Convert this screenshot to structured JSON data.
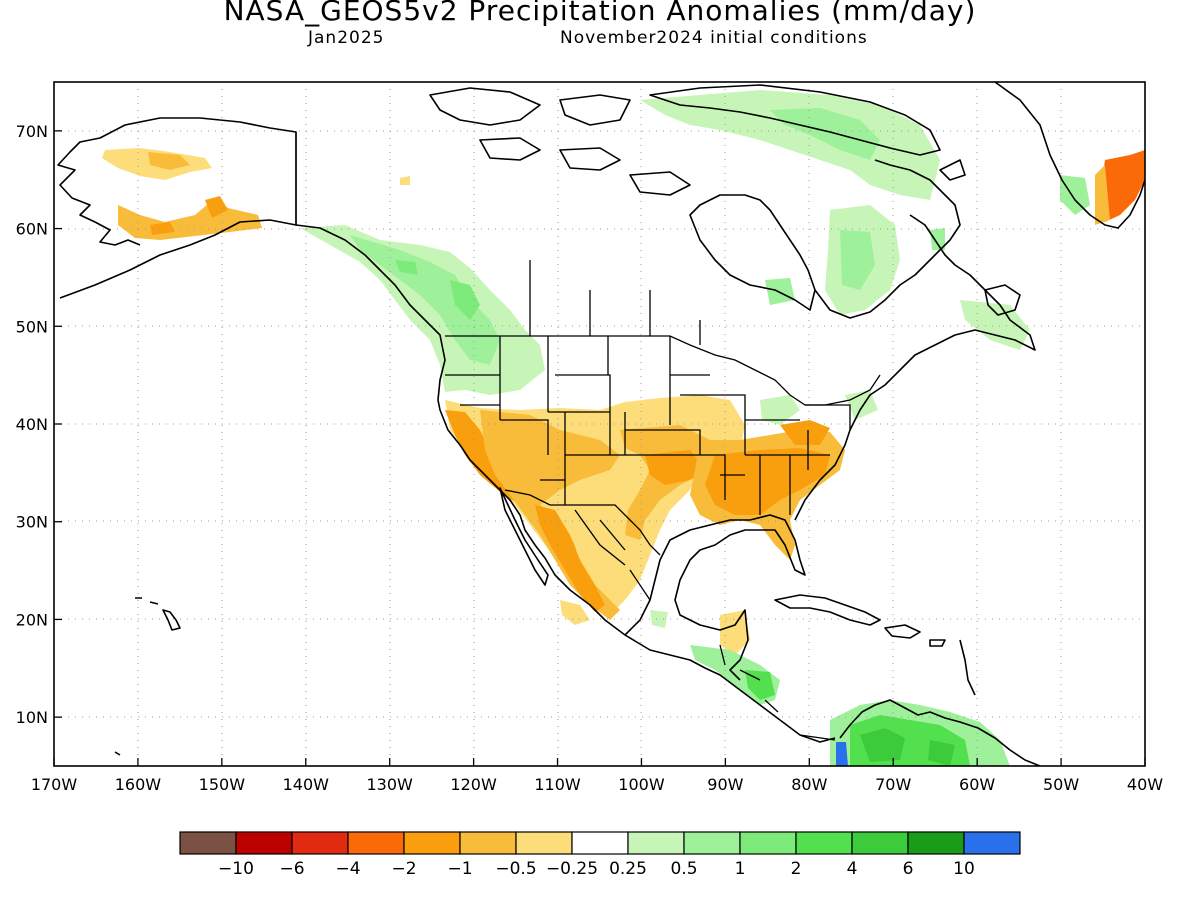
{
  "title": "NASA_GEOS5v2 Precipitation Anomalies (mm/day)",
  "subtitle_left": "Jan2025",
  "subtitle_right": "November2024 initial conditions",
  "lat_labels": [
    "70N",
    "60N",
    "50N",
    "40N",
    "30N",
    "20N",
    "10N"
  ],
  "lat_values": [
    70,
    60,
    50,
    40,
    30,
    20,
    10
  ],
  "lon_labels": [
    "170W",
    "160W",
    "150W",
    "140W",
    "130W",
    "120W",
    "110W",
    "100W",
    "90W",
    "80W",
    "70W",
    "60W",
    "50W",
    "40W"
  ],
  "lon_values": [
    -170,
    -160,
    -150,
    -140,
    -130,
    -120,
    -110,
    -100,
    -90,
    -80,
    -70,
    -60,
    -50,
    -40
  ],
  "map_extent": {
    "lon": [
      -170,
      -40
    ],
    "lat": [
      5,
      75
    ]
  },
  "colorbar": {
    "colors": [
      "#7b5143",
      "#bd0000",
      "#e02b10",
      "#fb6a09",
      "#f99e0c",
      "#f9bc3a",
      "#fcdd7a",
      "#ffffff",
      "#c7f5b7",
      "#9ef09a",
      "#7deb7a",
      "#52e04f",
      "#3bcb3b",
      "#1a9c1a",
      "#2871ea"
    ],
    "labels": [
      "−10",
      "−6",
      "−4",
      "−2",
      "−1",
      "−0.5",
      "−0.25",
      "0.25",
      "0.5",
      "1",
      "2",
      "4",
      "6",
      "10"
    ]
  },
  "anomaly_regions": [
    {
      "region": "western Alaska",
      "category": "-0.5",
      "color": "#fcdd7a"
    },
    {
      "region": "southern Alaska",
      "category": "-1",
      "color": "#f9bc3a"
    },
    {
      "region": "Pacific Northwest",
      "category": "0.5",
      "color": "#9ef09a"
    },
    {
      "region": "California",
      "category": "-2",
      "color": "#f99e0c"
    },
    {
      "region": "US Southwest",
      "category": "-1",
      "color": "#f9bc3a"
    },
    {
      "region": "Southern Plains",
      "category": "-1",
      "color": "#f9bc3a"
    },
    {
      "region": "US Southeast",
      "category": "-2",
      "color": "#f99e0c"
    },
    {
      "region": "Northwest Mexico",
      "category": "-2",
      "color": "#f99e0c"
    },
    {
      "region": "Eastern Canada",
      "category": "0.5",
      "color": "#9ef09a"
    },
    {
      "region": "Arctic Archipelago",
      "category": "0.25",
      "color": "#c7f5b7"
    },
    {
      "region": "Greenland coast",
      "category": "-2",
      "color": "#fb6a09"
    },
    {
      "region": "Central America",
      "category": "1",
      "color": "#7deb7a"
    },
    {
      "region": "Northern South America",
      "category": "2",
      "color": "#52e04f"
    },
    {
      "region": "Colombia coast",
      "category": "10",
      "color": "#2871ea"
    }
  ]
}
